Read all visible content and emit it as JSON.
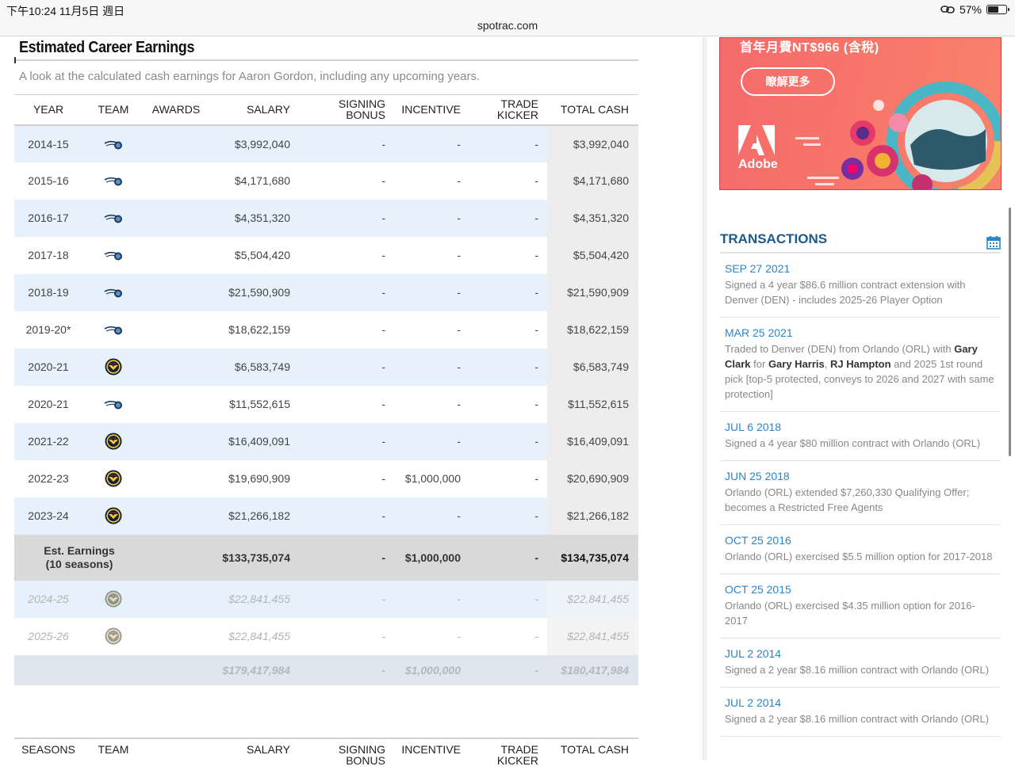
{
  "status": {
    "time": "下午10:24 11月5日 週日",
    "url": "spotrac.com",
    "battery": "57%",
    "battery_level": 0.57
  },
  "section": {
    "title": "Estimated Career Earnings",
    "subtitle": "A look at the calculated cash earnings for Aaron Gordon, including any upcoming years."
  },
  "table_headers": {
    "year": "YEAR",
    "team": "TEAM",
    "awards": "AWARDS",
    "salary": "SALARY",
    "signing_1": "SIGNING",
    "signing_2": "BONUS",
    "incentive": "INCENTIVE",
    "trade_1": "TRADE",
    "trade_2": "KICKER",
    "total": "TOTAL CASH"
  },
  "rows": [
    {
      "year": "2014-15",
      "team": "orlando-magic-logo",
      "salary": "$3,992,040",
      "signing": "-",
      "incentive": "-",
      "trade": "-",
      "total": "$3,992,040"
    },
    {
      "year": "2015-16",
      "team": "orlando-magic-logo",
      "salary": "$4,171,680",
      "signing": "-",
      "incentive": "-",
      "trade": "-",
      "total": "$4,171,680"
    },
    {
      "year": "2016-17",
      "team": "orlando-magic-logo",
      "salary": "$4,351,320",
      "signing": "-",
      "incentive": "-",
      "trade": "-",
      "total": "$4,351,320"
    },
    {
      "year": "2017-18",
      "team": "orlando-magic-logo",
      "salary": "$5,504,420",
      "signing": "-",
      "incentive": "-",
      "trade": "-",
      "total": "$5,504,420"
    },
    {
      "year": "2018-19",
      "team": "orlando-magic-logo",
      "salary": "$21,590,909",
      "signing": "-",
      "incentive": "-",
      "trade": "-",
      "total": "$21,590,909"
    },
    {
      "year": "2019-20*",
      "team": "orlando-magic-logo",
      "salary": "$18,622,159",
      "signing": "-",
      "incentive": "-",
      "trade": "-",
      "total": "$18,622,159"
    },
    {
      "year": "2020-21",
      "team": "denver-nuggets-logo",
      "salary": "$6,583,749",
      "signing": "-",
      "incentive": "-",
      "trade": "-",
      "total": "$6,583,749"
    },
    {
      "year": "2020-21",
      "team": "orlando-magic-logo",
      "salary": "$11,552,615",
      "signing": "-",
      "incentive": "-",
      "trade": "-",
      "total": "$11,552,615"
    },
    {
      "year": "2021-22",
      "team": "denver-nuggets-logo",
      "salary": "$16,409,091",
      "signing": "-",
      "incentive": "-",
      "trade": "-",
      "total": "$16,409,091"
    },
    {
      "year": "2022-23",
      "team": "denver-nuggets-logo",
      "salary": "$19,690,909",
      "signing": "-",
      "incentive": "$1,000,000",
      "trade": "-",
      "total": "$20,690,909"
    },
    {
      "year": "2023-24",
      "team": "denver-nuggets-logo",
      "salary": "$21,266,182",
      "signing": "-",
      "incentive": "-",
      "trade": "-",
      "total": "$21,266,182"
    }
  ],
  "est_row": {
    "label_1": "Est. Earnings",
    "label_2": "(10 seasons)",
    "salary": "$133,735,074",
    "signing": "-",
    "incentive": "$1,000,000",
    "trade": "-",
    "total": "$134,735,074"
  },
  "future_rows": [
    {
      "year": "2024-25",
      "team": "denver-nuggets-logo",
      "salary": "$22,841,455",
      "signing": "-",
      "incentive": "-",
      "trade": "-",
      "total": "$22,841,455"
    },
    {
      "year": "2025-26",
      "team": "denver-nuggets-logo",
      "salary": "$22,841,455",
      "signing": "-",
      "incentive": "-",
      "trade": "-",
      "total": "$22,841,455"
    }
  ],
  "future_sum": {
    "salary": "$179,417,984",
    "signing": "-",
    "incentive": "$1,000,000",
    "trade": "-",
    "total": "$180,417,984"
  },
  "table2_headers": {
    "seasons": "SEASONS",
    "team": "TEAM",
    "salary": "SALARY",
    "signing_1": "SIGNING",
    "signing_2": "BONUS",
    "incentive": "INCENTIVE",
    "trade_1": "TRADE",
    "trade_2": "KICKER",
    "total": "TOTAL CASH"
  },
  "ad": {
    "price": "首年月費NT$966 (含稅)",
    "button": "瞭解更多",
    "brand": "Adobe",
    "color": "#f7746a"
  },
  "transactions": {
    "title": "TRANSACTIONS",
    "items": [
      {
        "date": "SEP 27 2021",
        "text": "Signed a 4 year $86.6 million contract extension with Denver (DEN) - includes 2025-26 Player Option"
      },
      {
        "date": "MAR 25 2021",
        "t1": "Traded to Denver (DEN) from Orlando (ORL) with ",
        "b1": "Gary Clark",
        "t2": " for ",
        "b2": "Gary Harris",
        "t3": ", ",
        "b3": "RJ Hampton",
        "t4": " and 2025 1st round pick [top-5 protected, conveys to 2026 and 2027 with same protection]"
      },
      {
        "date": "JUL 6 2018",
        "text": "Signed a 4 year $80 million contract with Orlando (ORL)"
      },
      {
        "date": "JUN 25 2018",
        "text": "Orlando (ORL) extended $7,260,330 Qualifying Offer; becomes a Restricted Free Agents"
      },
      {
        "date": "OCT 25 2016",
        "text": "Orlando (ORL) exercised $5.5 million option for 2017-2018"
      },
      {
        "date": "OCT 25 2015",
        "text": "Orlando (ORL) exercised $4.35 million option for 2016-2017"
      },
      {
        "date": "JUL 2 2014",
        "text": "Signed a 2 year $8.16 million contract with Orlando (ORL)"
      },
      {
        "date": "JUL 2 2014",
        "text": "Signed a 2 year $8.16 million contract with Orlando (ORL)"
      }
    ]
  }
}
